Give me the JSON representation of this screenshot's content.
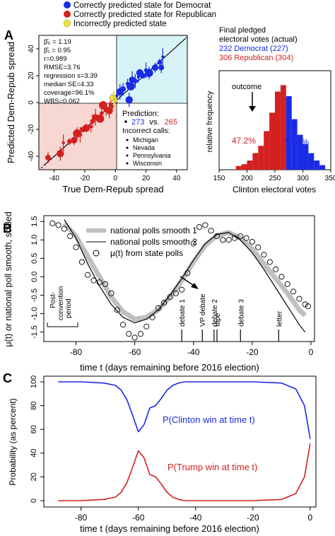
{
  "panels": {
    "A": {
      "letter": "A"
    },
    "B": {
      "letter": "B"
    },
    "C": {
      "letter": "C"
    }
  },
  "legend_top": {
    "items": [
      {
        "label": "Correctly predicted state for Democrat",
        "color": "#1a2be6"
      },
      {
        "label": "Correctly predicted state for Republican",
        "color": "#d42020"
      },
      {
        "label": "Incorrectly predicted state",
        "color": "#f2e130"
      }
    ]
  },
  "stats": {
    "beta0": "β̂₀ = 1.19",
    "beta1": "β̂₁ = 0.95",
    "r": "r=0.989",
    "rmse": "RMSE=3.76",
    "regression_s": "regression s=3.39",
    "median_se": "median SE=4.33",
    "coverage": "coverage=96.1%",
    "wbs": "WBS=0.062"
  },
  "prediction": {
    "title": "Prediction:",
    "dem": "273",
    "vs": "vs.",
    "rep": "265",
    "incorrect_title": "Incorrect calls:",
    "states": [
      "Michigan",
      "Nevada",
      "Pennsylvania",
      "Wisconsin"
    ]
  },
  "final_votes": {
    "line1": "Final pledged",
    "line2": "electoral votes (actual)",
    "dem": "232 Democrat (227)",
    "rep": "306 Republican (304)"
  },
  "hist_text": {
    "outcome": "outcome",
    "rep_pct": "47.2%",
    "dem_pct": "52.8%"
  },
  "panelB_legend": [
    "national polls smooth 1",
    "national polls smooth 2",
    "μ(t) from state polls"
  ],
  "events": [
    "debate 1",
    "VP debate",
    "debate 2",
    "tape",
    "debate 3",
    "letter"
  ],
  "convention_label": [
    "Post-",
    "convention",
    "period"
  ],
  "panelC_labels": {
    "clinton": "P(Clinton win at time t)",
    "trump": "P(Trump win at time t)"
  },
  "colors": {
    "dem": "#1a2be6",
    "rep": "#d42020",
    "yellow": "#f2e130",
    "dem_region": "#d8f3f5",
    "rep_region": "#f6d7d2",
    "gray_band": "#c0c0c0"
  },
  "chart_data": [
    {
      "type": "scatter",
      "title": "",
      "xlabel": "True Dem-Repub spread",
      "ylabel": "Predicted Dem-Repub spread",
      "xlim": [
        -50,
        47
      ],
      "ylim": [
        -50,
        50
      ],
      "xticks": [
        -40,
        -20,
        0,
        20,
        40
      ],
      "yticks": [
        -40,
        -20,
        0,
        20,
        40
      ],
      "series": [
        {
          "name": "Correctly predicted state for Democrat",
          "points": [
            [
              1,
              5
            ],
            [
              3,
              8
            ],
            [
              5,
              10
            ],
            [
              8,
              14
            ],
            [
              10,
              12
            ],
            [
              11,
              17
            ],
            [
              13,
              16
            ],
            [
              15,
              19
            ],
            [
              16,
              22
            ],
            [
              18,
              20
            ],
            [
              20,
              24
            ],
            [
              22,
              22
            ],
            [
              26,
              26
            ],
            [
              29,
              30
            ],
            [
              31,
              34
            ],
            [
              9,
              2
            ],
            [
              30,
              26
            ]
          ]
        },
        {
          "name": "Correctly predicted state for Republican",
          "points": [
            [
              -2,
              -3
            ],
            [
              -4,
              -6
            ],
            [
              -6,
              -5
            ],
            [
              -9,
              -8
            ],
            [
              -10,
              -12
            ],
            [
              -13,
              -11
            ],
            [
              -15,
              -14
            ],
            [
              -16,
              -18
            ],
            [
              -19,
              -19
            ],
            [
              -21,
              -20
            ],
            [
              -23,
              -24
            ],
            [
              -25,
              -23
            ],
            [
              -27,
              -28
            ],
            [
              -30,
              -29
            ],
            [
              -34,
              -30
            ],
            [
              -36,
              -38
            ],
            [
              -44,
              -41
            ],
            [
              -3,
              -1
            ],
            [
              -8,
              -2
            ]
          ]
        },
        {
          "name": "Incorrectly predicted state",
          "points": [
            [
              -0.3,
              2
            ],
            [
              -0.7,
              3
            ],
            [
              -1.2,
              4
            ],
            [
              -2.4,
              3.5
            ]
          ]
        }
      ]
    },
    {
      "type": "bar",
      "title": "",
      "xlabel": "Clinton electoral votes",
      "ylabel": "relative frequency",
      "xlim": [
        150,
        350
      ],
      "xticks": [
        150,
        200,
        250,
        300,
        350
      ],
      "outcome_x": 232,
      "bins": [
        [
          180,
          0.04
        ],
        [
          190,
          0.06
        ],
        [
          200,
          0.1
        ],
        [
          210,
          0.18
        ],
        [
          220,
          0.26
        ],
        [
          230,
          0.42
        ],
        [
          240,
          0.62
        ],
        [
          250,
          0.85
        ],
        [
          260,
          0.92
        ],
        [
          270,
          0.8
        ],
        [
          280,
          0.55
        ],
        [
          290,
          0.38
        ],
        [
          300,
          0.28
        ],
        [
          310,
          0.18
        ],
        [
          320,
          0.1
        ],
        [
          330,
          0.05
        ]
      ],
      "split_at": 270
    },
    {
      "type": "line",
      "title": "",
      "xlabel": "time t (days remaining before 2016 election)",
      "ylabel": "μ(t) or national poll smooth, scaled",
      "xlim": [
        -90,
        0
      ],
      "ylim": [
        -1.7,
        1.6
      ],
      "xticks": [
        -80,
        -60,
        -40,
        -20,
        0
      ],
      "yticks": [
        -1.5,
        -1.0,
        -0.5,
        0.0,
        0.5,
        1.0,
        1.5
      ],
      "event_days": [
        -44,
        -37,
        -33,
        -32,
        -24,
        -11
      ],
      "series": [
        {
          "name": "national polls smooth 1",
          "x": [
            -84,
            -80,
            -76,
            -72,
            -68,
            -64,
            -60,
            -56,
            -52,
            -48,
            -44,
            -40,
            -36,
            -32,
            -28,
            -24,
            -20,
            -16,
            -12,
            -8,
            -4,
            -2
          ],
          "y": [
            1.45,
            1.1,
            0.55,
            0.0,
            -0.55,
            -0.95,
            -1.15,
            -1.1,
            -0.9,
            -0.55,
            -0.1,
            0.4,
            0.85,
            1.12,
            1.2,
            1.05,
            0.75,
            0.35,
            -0.05,
            -0.45,
            -0.9,
            -1.05
          ]
        },
        {
          "name": "national polls smooth 2",
          "x": [
            -84,
            -80,
            -76,
            -72,
            -68,
            -64,
            -60,
            -56,
            -52,
            -48,
            -44,
            -40,
            -36,
            -32,
            -28,
            -24,
            -20,
            -16,
            -12,
            -8,
            -4,
            -2
          ],
          "y": [
            1.55,
            1.05,
            0.35,
            -0.25,
            -0.75,
            -1.1,
            -1.25,
            -1.15,
            -0.9,
            -0.5,
            -0.05,
            0.45,
            0.9,
            1.15,
            1.2,
            1.0,
            0.65,
            0.2,
            -0.3,
            -0.8,
            -1.3,
            -1.5
          ]
        },
        {
          "name": "μ(t) from state polls",
          "x": [
            -88,
            -86,
            -84,
            -82,
            -80,
            -78,
            -76,
            -74,
            -72,
            -70,
            -68,
            -66,
            -64,
            -62,
            -60,
            -58,
            -56,
            -54,
            -52,
            -50,
            -48,
            -46,
            -44,
            -42,
            -40,
            -38,
            -36,
            -34,
            -32,
            -30,
            -28,
            -26,
            -24,
            -22,
            -20,
            -18,
            -16,
            -14,
            -12,
            -10,
            -8,
            -6,
            -4,
            -2,
            -1
          ],
          "y": [
            1.45,
            1.4,
            1.3,
            1.1,
            0.8,
            0.4,
            0.05,
            -0.1,
            -0.15,
            -0.2,
            -0.45,
            -0.9,
            -1.3,
            -1.55,
            -1.65,
            -1.55,
            -1.35,
            -1.1,
            -0.85,
            -0.7,
            -0.55,
            -0.45,
            -0.35,
            0.1,
            0.9,
            1.35,
            1.4,
            1.25,
            1.1,
            1.0,
            1.0,
            1.05,
            1.1,
            1.05,
            0.95,
            0.8,
            0.6,
            0.4,
            0.2,
            0.0,
            -0.2,
            -0.4,
            -0.6,
            -0.75,
            -0.8
          ]
        }
      ]
    },
    {
      "type": "line",
      "title": "",
      "xlabel": "time t (days remaining before 2016 election)",
      "ylabel": "Probability (as percent)",
      "xlim": [
        -93,
        2
      ],
      "ylim": [
        0,
        100
      ],
      "xticks": [
        -80,
        -60,
        -40,
        -20,
        0
      ],
      "yticks": [
        0,
        20,
        40,
        60,
        80,
        100
      ],
      "series": [
        {
          "name": "P(Clinton win at time t)",
          "x": [
            -88,
            -80,
            -72,
            -68,
            -66,
            -64,
            -62,
            -60,
            -58,
            -56,
            -54,
            -52,
            -50,
            -48,
            -46,
            -44,
            -40,
            -30,
            -20,
            -10,
            -5,
            -2,
            0
          ],
          "y": [
            100,
            100,
            99,
            97,
            93,
            85,
            72,
            58,
            64,
            78,
            80,
            86,
            93,
            97,
            99,
            100,
            100,
            100,
            100,
            99,
            94,
            80,
            52
          ]
        },
        {
          "name": "P(Trump win at time t)",
          "x": [
            -88,
            -80,
            -72,
            -68,
            -66,
            -64,
            -62,
            -60,
            -58,
            -56,
            -54,
            -52,
            -50,
            -48,
            -46,
            -44,
            -40,
            -30,
            -20,
            -10,
            -5,
            -2,
            0
          ],
          "y": [
            0,
            0,
            1,
            3,
            7,
            15,
            28,
            42,
            36,
            22,
            20,
            14,
            7,
            3,
            1,
            0,
            0,
            0,
            0,
            1,
            6,
            20,
            48
          ]
        }
      ]
    }
  ]
}
